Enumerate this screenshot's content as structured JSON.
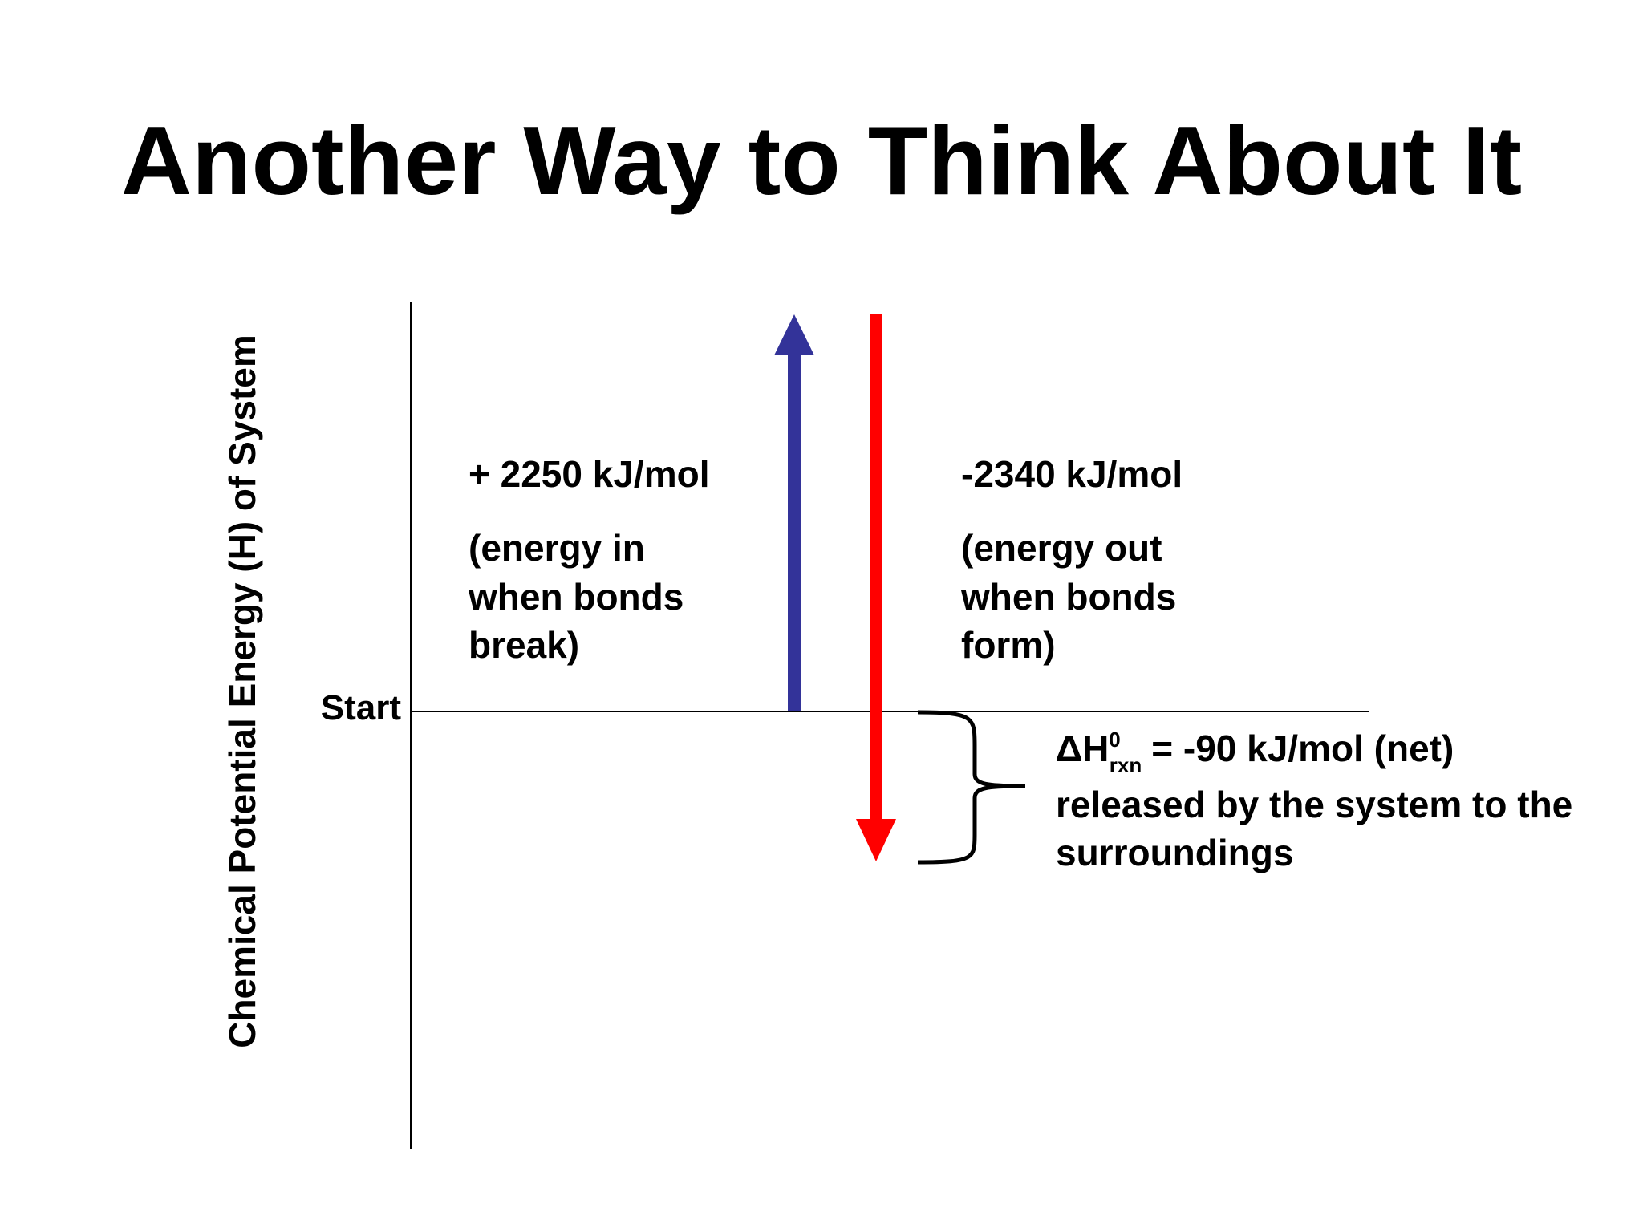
{
  "title": "Another Way to Think About It",
  "y_axis_label": "Chemical Potential Energy (H) of System",
  "start_label": "Start",
  "bond_breaking": {
    "value": "+ 2250 kJ/mol",
    "lines": [
      "(energy in",
      "when bonds",
      "break)"
    ]
  },
  "bond_forming": {
    "value": "-2340 kJ/mol",
    "lines": [
      "(energy out",
      "when bonds",
      "form)"
    ]
  },
  "net": {
    "symbol": "ΔH",
    "superscript": "0",
    "subscript": "rxn",
    "equation": "= -90 kJ/mol (net)",
    "lines": [
      "released by the system to the",
      "surroundings"
    ]
  }
}
